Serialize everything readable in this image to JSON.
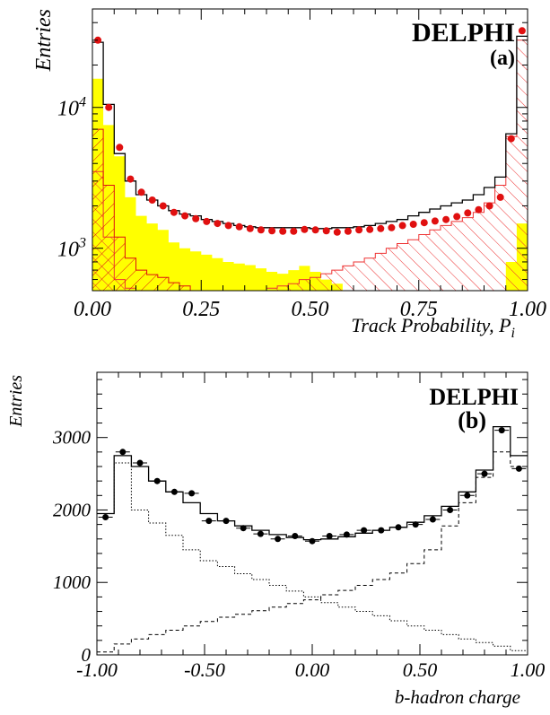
{
  "chart_data": [
    {
      "type": "histogram",
      "panel_label": "(a)",
      "brand": "DELPHI",
      "xlabel_main": "Track Probability, P",
      "xlabel_sub": "i",
      "ylabel": "Entries",
      "xlim": [
        0,
        1
      ],
      "ylim": [
        500,
        50000
      ],
      "yscale": "log",
      "x_ticks": [
        {
          "v": 0,
          "label": "0.00"
        },
        {
          "v": 0.25,
          "label": "0.25"
        },
        {
          "v": 0.5,
          "label": "0.50"
        },
        {
          "v": 0.75,
          "label": "0.75"
        },
        {
          "v": 1,
          "label": "1.00"
        }
      ],
      "y_ticks": [
        {
          "v": 1000,
          "label": "10",
          "exp": "3"
        },
        {
          "v": 10000,
          "label": "10",
          "exp": "4"
        }
      ],
      "colors": {
        "data": "#e01010",
        "total": "#000000",
        "light": "#ffff00",
        "hatch_b": "#dd1111",
        "hatch_c": "#ee3333"
      },
      "bins": 40,
      "series": [
        {
          "kind": "step",
          "values": [
            29000,
            10500,
            4700,
            3000,
            2400,
            2200,
            2000,
            1850,
            1750,
            1700,
            1600,
            1550,
            1500,
            1450,
            1420,
            1400,
            1400,
            1400,
            1400,
            1400,
            1380,
            1380,
            1400,
            1400,
            1420,
            1450,
            1500,
            1550,
            1600,
            1700,
            1800,
            1900,
            2000,
            2100,
            2200,
            2400,
            2700,
            3200,
            6500,
            32000
          ]
        },
        {
          "kind": "data",
          "values": [
            30000,
            10000,
            5200,
            3100,
            2500,
            2200,
            2000,
            1800,
            1700,
            1620,
            1550,
            1500,
            1450,
            1420,
            1380,
            1350,
            1330,
            1320,
            1320,
            1360,
            1350,
            1330,
            1300,
            1320,
            1350,
            1360,
            1380,
            1400,
            1450,
            1480,
            1520,
            1560,
            1600,
            1680,
            1780,
            1880,
            2000,
            2300,
            6000,
            35000
          ]
        },
        {
          "kind": "light",
          "values": [
            16000,
            7500,
            4500,
            2300,
            1700,
            1500,
            1350,
            1100,
            1000,
            950,
            900,
            850,
            800,
            780,
            760,
            720,
            680,
            660,
            700,
            750,
            680,
            600,
            560,
            500,
            470,
            470,
            470,
            470,
            470,
            470,
            470,
            470,
            470,
            470,
            470,
            470,
            470,
            470,
            800,
            1500
          ]
        },
        {
          "kind": "hatch_b",
          "values": [
            7000,
            2800,
            1200,
            850,
            700,
            650,
            620,
            570,
            540,
            500,
            490,
            480,
            470,
            470,
            470,
            470,
            470,
            470,
            470,
            470,
            470,
            470,
            470,
            470,
            470,
            470,
            470,
            470,
            470,
            470,
            470,
            470,
            470,
            470,
            470,
            470,
            470,
            470,
            470,
            470
          ]
        },
        {
          "kind": "hatch_c",
          "values": [
            3500,
            1200,
            600,
            520,
            490,
            470,
            460,
            460,
            460,
            460,
            460,
            460,
            470,
            480,
            490,
            500,
            520,
            540,
            560,
            600,
            620,
            660,
            700,
            750,
            800,
            850,
            920,
            1000,
            1080,
            1150,
            1250,
            1350,
            1450,
            1550,
            1650,
            1800,
            2100,
            2800,
            6200,
            30000
          ]
        }
      ]
    },
    {
      "type": "histogram",
      "panel_label": "(b)",
      "brand": "DELPHI",
      "xlabel": "b-hadron charge",
      "ylabel": "Entries",
      "xlim": [
        -1,
        1
      ],
      "ylim": [
        0,
        3900
      ],
      "yscale": "linear",
      "x_ticks": [
        {
          "v": -1,
          "label": "-1.00"
        },
        {
          "v": -0.5,
          "label": "-0.50"
        },
        {
          "v": 0,
          "label": "0.00"
        },
        {
          "v": 0.5,
          "label": "0.50"
        },
        {
          "v": 1,
          "label": "1.00"
        }
      ],
      "y_ticks": [
        {
          "v": 0,
          "label": "0"
        },
        {
          "v": 1000,
          "label": "1000"
        },
        {
          "v": 2000,
          "label": "2000"
        },
        {
          "v": 3000,
          "label": "3000"
        }
      ],
      "bins": 25,
      "series": [
        {
          "kind": "step",
          "values": [
            1950,
            2750,
            2600,
            2400,
            2250,
            2100,
            1950,
            1850,
            1780,
            1720,
            1660,
            1620,
            1590,
            1600,
            1630,
            1680,
            1720,
            1760,
            1830,
            1920,
            2050,
            2250,
            2550,
            3150,
            2750
          ]
        },
        {
          "kind": "data",
          "values": [
            1900,
            2800,
            2650,
            2400,
            2250,
            2230,
            1850,
            1850,
            1750,
            1670,
            1600,
            1640,
            1570,
            1640,
            1660,
            1720,
            1720,
            1760,
            1800,
            1870,
            2000,
            2200,
            2500,
            3100,
            2570
          ]
        },
        {
          "kind": "dotted",
          "values": [
            1950,
            2650,
            2000,
            1820,
            1650,
            1450,
            1300,
            1220,
            1120,
            1040,
            960,
            880,
            800,
            720,
            660,
            600,
            540,
            470,
            400,
            340,
            280,
            220,
            170,
            120,
            60
          ]
        },
        {
          "kind": "dashed",
          "values": [
            40,
            150,
            220,
            280,
            340,
            400,
            460,
            520,
            560,
            610,
            660,
            710,
            760,
            830,
            890,
            960,
            1040,
            1130,
            1260,
            1450,
            1780,
            2100,
            2450,
            2800,
            2600
          ]
        }
      ]
    }
  ]
}
